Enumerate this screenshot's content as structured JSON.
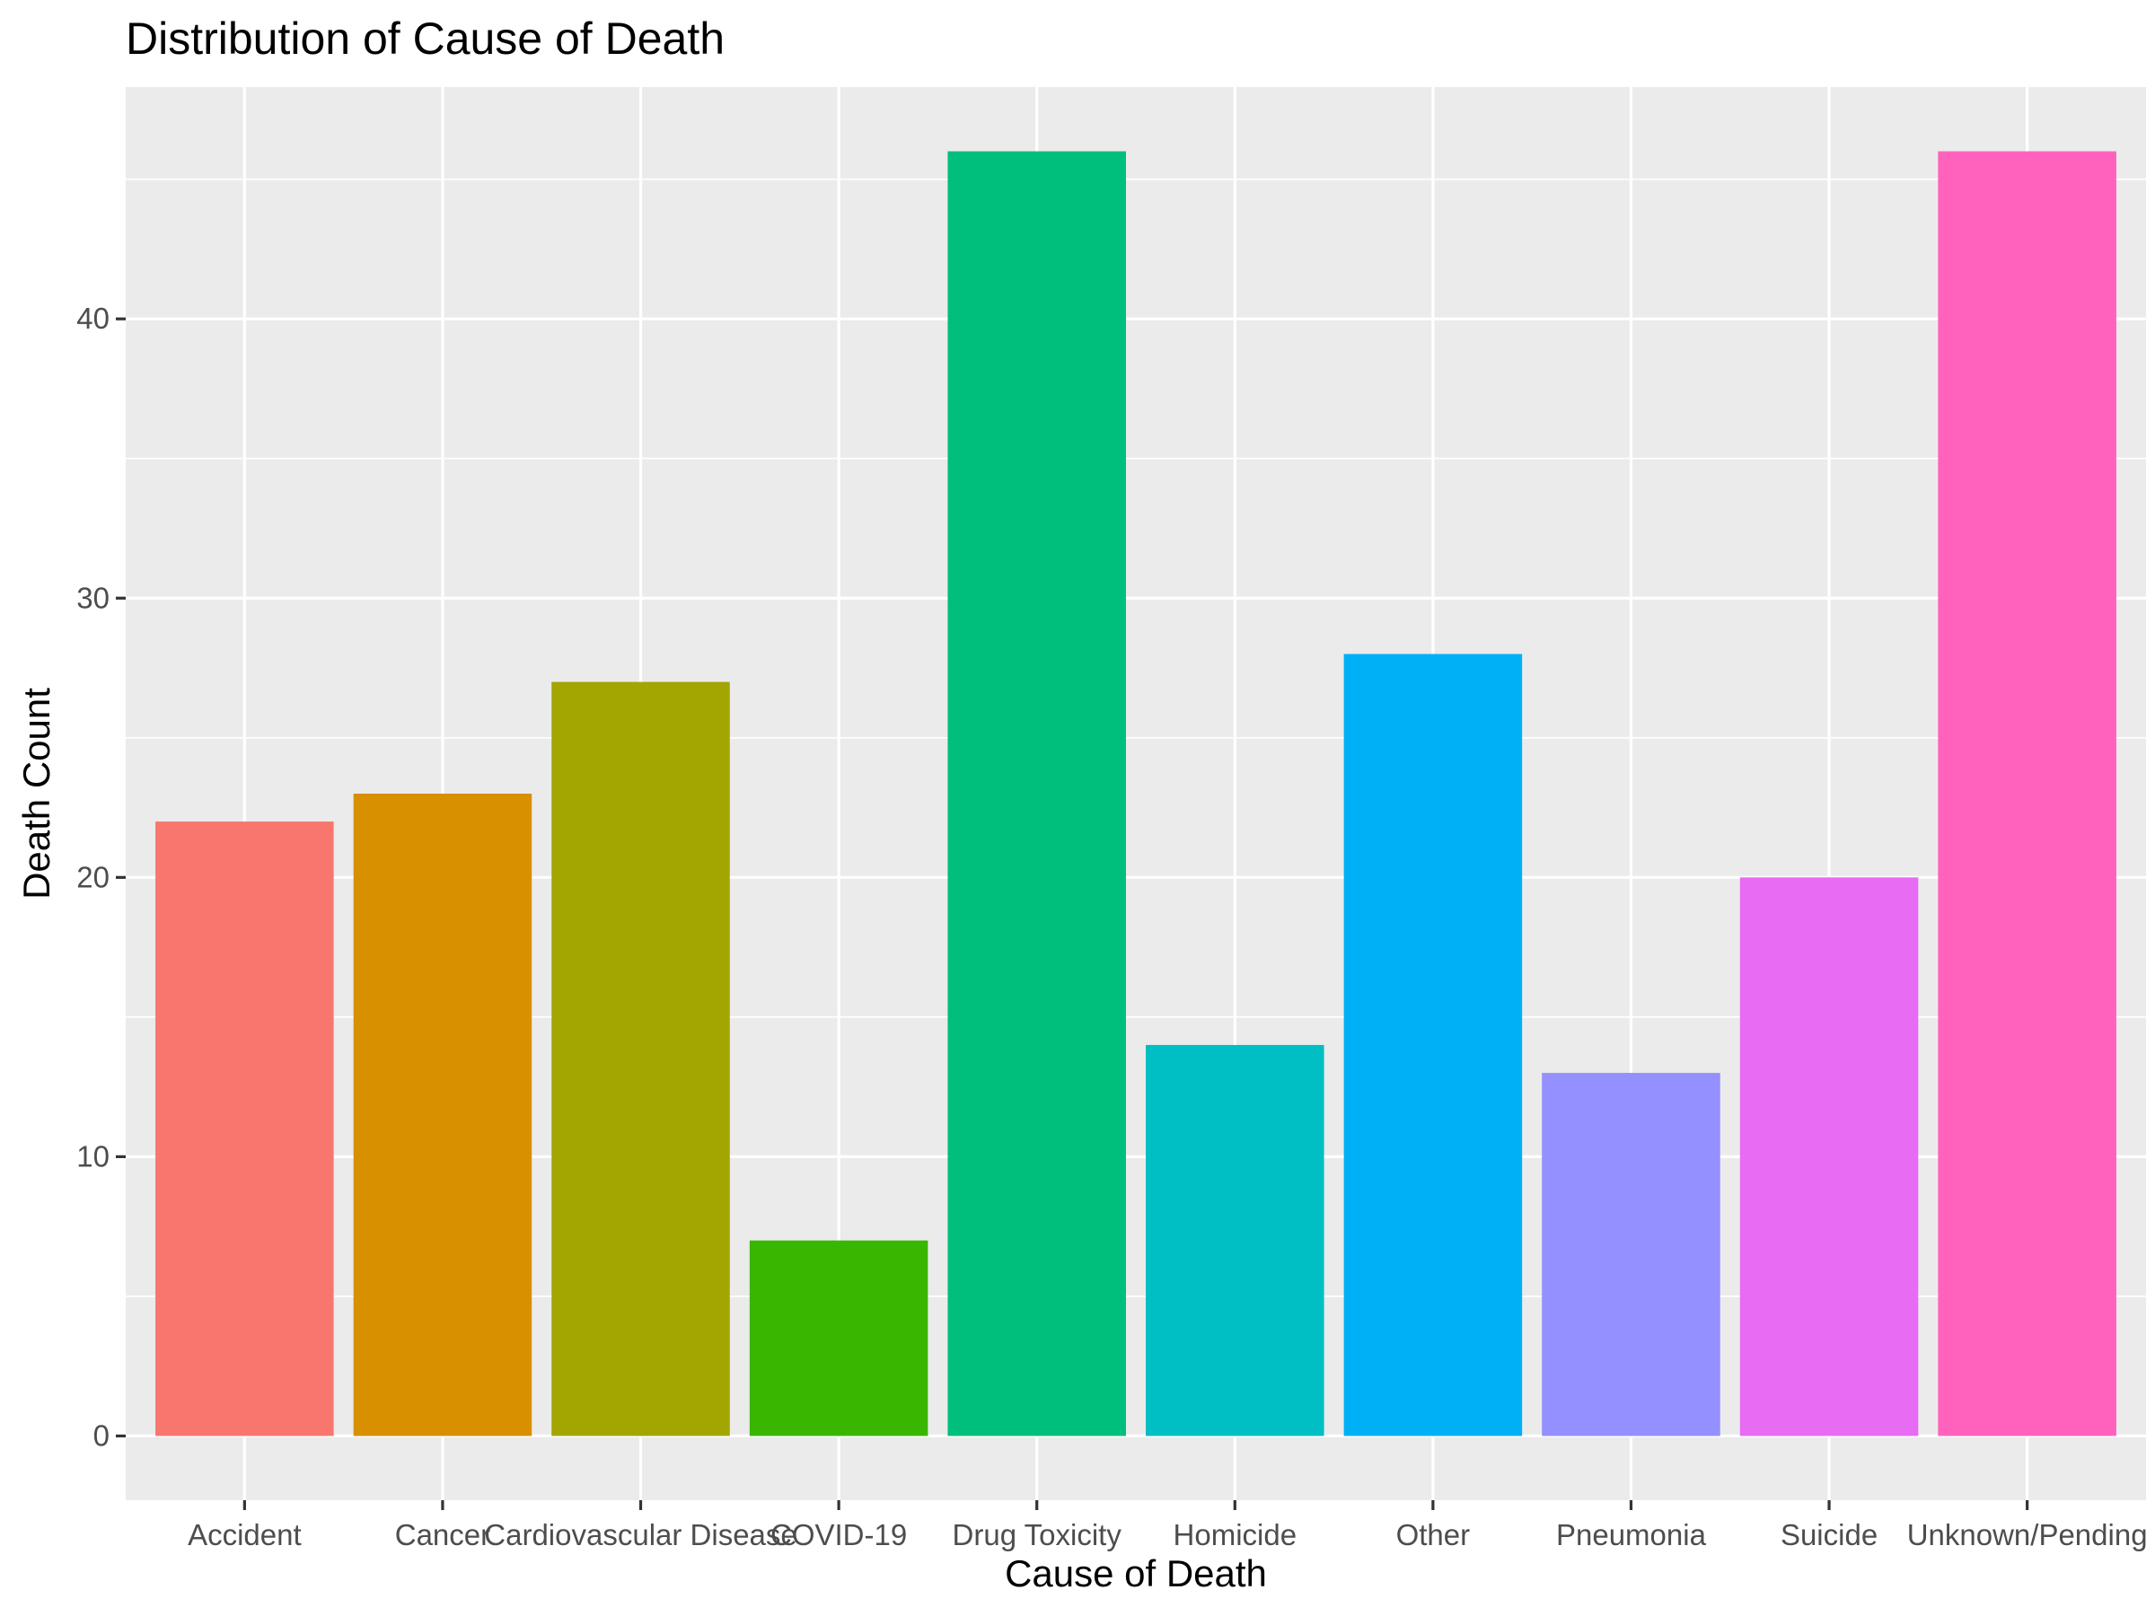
{
  "chart_data": {
    "type": "bar",
    "title": "Distribution of Cause of Death",
    "xlabel": "Cause of Death",
    "ylabel": "Death Count",
    "categories": [
      "Accident",
      "Cancer",
      "Cardiovascular Disease",
      "COVID-19",
      "Drug Toxicity",
      "Homicide",
      "Other",
      "Pneumonia",
      "Suicide",
      "Unknown/Pending"
    ],
    "values": [
      22,
      23,
      27,
      7,
      46,
      14,
      28,
      13,
      20,
      46
    ],
    "colors": [
      "#F8766D",
      "#D89000",
      "#A3A500",
      "#39B600",
      "#00BF7D",
      "#00BFC4",
      "#00B0F6",
      "#9590FF",
      "#E76BF3",
      "#FF62BC"
    ],
    "ylim": [
      -2.3,
      48.3
    ],
    "yticks": [
      0,
      10,
      20,
      30,
      40
    ],
    "grid": true,
    "panel_background": "#EBEBEB",
    "legend": "none"
  }
}
